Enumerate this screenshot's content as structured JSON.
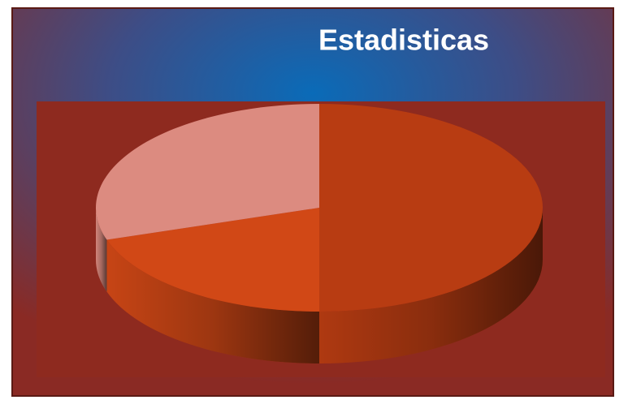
{
  "chart_data": {
    "type": "pie",
    "title": "Estadisticas",
    "values": [
      50,
      20,
      30
    ],
    "colors": [
      "#b83c12",
      "#d14816",
      "#dc8b80"
    ]
  }
}
